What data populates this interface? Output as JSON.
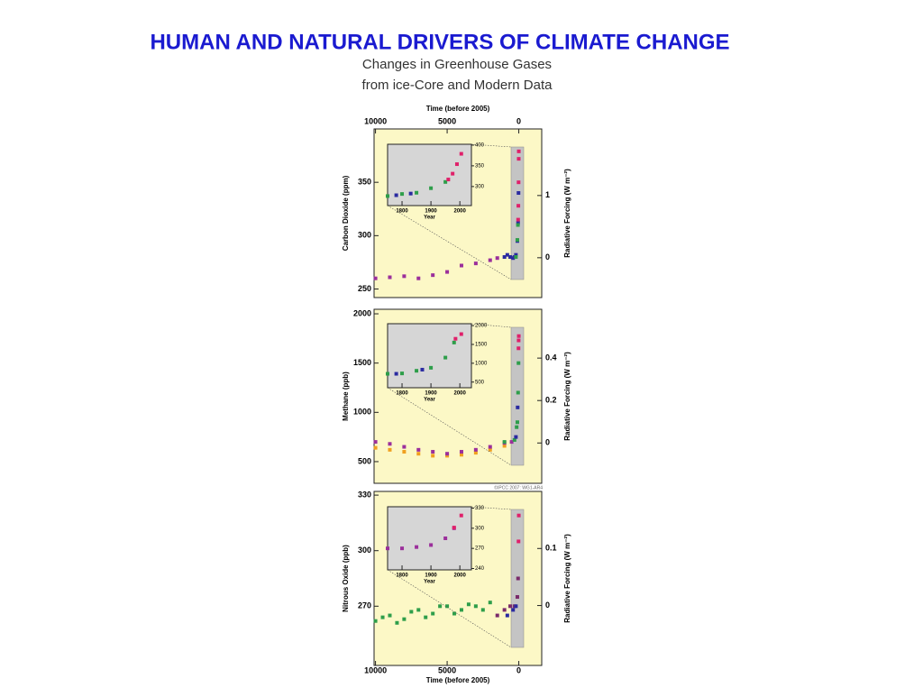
{
  "title": "HUMAN AND NATURAL DRIVERS OF CLIMATE CHANGE",
  "subtitle": [
    "Changes in Greenhouse Gases",
    "from ice-Core and Modern Data"
  ],
  "credit": "©IPCC 2007: WG1-AR4",
  "chart_data": [
    {
      "type": "scatter",
      "xlabel": "Time (before 2005)",
      "xlim": [
        10100,
        -1600
      ],
      "xticks": [
        10000,
        5000,
        0
      ],
      "xaxis": "top",
      "ylabel": "Carbon Dioxide (ppm)",
      "ylim": [
        242,
        400
      ],
      "yticks": [
        250,
        300,
        350
      ],
      "y2label": "Radiative Forcing (W m⁻²)",
      "y2lim": [
        -0.64,
        2.07
      ],
      "y2ticks": [
        0,
        1
      ],
      "series": [
        {
          "color": "#9b2f9b",
          "x": [
            10000,
            9000,
            8000,
            7000,
            6000,
            5000,
            4000,
            3000,
            2000,
            1500
          ],
          "y": [
            260,
            261,
            262,
            260,
            263,
            266,
            272,
            274,
            277,
            279
          ]
        },
        {
          "color": "#2a2aa0",
          "x": [
            1000,
            800,
            600,
            400,
            300,
            200,
            100,
            50,
            20
          ],
          "y": [
            280,
            282,
            280,
            279,
            280,
            282,
            295,
            312,
            340
          ]
        },
        {
          "color": "#2e9e4a",
          "x": [
            200,
            100,
            60
          ],
          "y": [
            280,
            296,
            310
          ]
        },
        {
          "color": "#e0206a",
          "x": [
            47,
            30,
            15,
            5,
            0
          ],
          "y": [
            315,
            328,
            350,
            372,
            379
          ]
        }
      ]
    },
    {
      "type": "scatter",
      "xlim": [
        10100,
        -1600
      ],
      "ylabel": "Methane (ppb)",
      "ylim": [
        280,
        2046
      ],
      "yticks": [
        500,
        1000,
        1500,
        2000
      ],
      "y2label": "Radiative Forcing (W m⁻²)",
      "y2lim": [
        -0.19,
        0.63
      ],
      "y2ticks": [
        0,
        0.2,
        0.4
      ],
      "series": [
        {
          "color": "#f0a020",
          "x": [
            10000,
            9000,
            8000,
            7000,
            6000,
            5000,
            4000,
            3000,
            2000,
            1000
          ],
          "y": [
            640,
            620,
            600,
            580,
            560,
            560,
            570,
            590,
            620,
            660
          ]
        },
        {
          "color": "#9b2f9b",
          "x": [
            10000,
            9000,
            8000,
            7000,
            6000,
            5000,
            4000,
            3000,
            2000,
            1000,
            500
          ],
          "y": [
            700,
            680,
            650,
            620,
            600,
            580,
            600,
            620,
            650,
            690,
            700
          ]
        },
        {
          "color": "#2e9e4a",
          "x": [
            1000,
            300,
            150,
            100,
            50,
            20
          ],
          "y": [
            700,
            720,
            850,
            900,
            1200,
            1500
          ]
        },
        {
          "color": "#2a2aa0",
          "x": [
            200,
            80
          ],
          "y": [
            750,
            1050
          ]
        },
        {
          "color": "#e0206a",
          "x": [
            20,
            10,
            0
          ],
          "y": [
            1650,
            1730,
            1774
          ]
        }
      ]
    },
    {
      "type": "scatter",
      "xlabel": "Time (before 2005)",
      "xlim": [
        10100,
        -1600
      ],
      "xticks": [
        10000,
        5000,
        0
      ],
      "xaxis": "bottom",
      "ylabel": "Nitrous Oxide (ppb)",
      "ylim": [
        238,
        332
      ],
      "yticks": [
        270,
        300,
        330
      ],
      "y2label": "Radiative Forcing (W m⁻²)",
      "y2lim": [
        -0.105,
        0.2
      ],
      "y2ticks": [
        0,
        0.1
      ],
      "series": [
        {
          "color": "#2e9e4a",
          "x": [
            10000,
            9500,
            9000,
            8500,
            8000,
            7500,
            7000,
            6500,
            6000,
            5500,
            5000,
            4500,
            4000,
            3500,
            3000,
            2500,
            2000
          ],
          "y": [
            262,
            264,
            265,
            261,
            263,
            267,
            268,
            264,
            266,
            270,
            270,
            266,
            268,
            271,
            270,
            268,
            272
          ]
        },
        {
          "color": "#7a2a6a",
          "x": [
            1500,
            1000,
            600,
            300,
            100,
            50
          ],
          "y": [
            265,
            268,
            270,
            270,
            275,
            285
          ]
        },
        {
          "color": "#2a2aa0",
          "x": [
            800,
            400,
            200
          ],
          "y": [
            265,
            268,
            270
          ]
        },
        {
          "color": "#e0206a",
          "x": [
            20,
            0
          ],
          "y": [
            305,
            319
          ]
        }
      ]
    },
    {
      "type": "scatter",
      "inset_of": 0,
      "xlabel": "Year",
      "xlim": [
        1750,
        2040
      ],
      "xticks": [
        1800,
        1900,
        2000
      ],
      "ylim": [
        254,
        402
      ],
      "yticks": [
        300,
        350,
        400
      ],
      "series": [
        {
          "color": "#2e9e4a",
          "x": [
            1750,
            1800,
            1850,
            1900,
            1950
          ],
          "y": [
            277,
            282,
            285,
            296,
            311
          ]
        },
        {
          "color": "#2a2aa0",
          "x": [
            1780,
            1830
          ],
          "y": [
            279,
            283
          ]
        },
        {
          "color": "#e0206a",
          "x": [
            1960,
            1975,
            1990,
            2005
          ],
          "y": [
            317,
            331,
            354,
            379
          ]
        }
      ]
    },
    {
      "type": "scatter",
      "inset_of": 1,
      "xlabel": "Year",
      "xlim": [
        1750,
        2040
      ],
      "xticks": [
        1800,
        1900,
        2000
      ],
      "ylim": [
        350,
        2050
      ],
      "yticks": [
        500,
        1000,
        1500,
        2000
      ],
      "series": [
        {
          "color": "#2e9e4a",
          "x": [
            1750,
            1800,
            1850,
            1900,
            1950,
            1980
          ],
          "y": [
            720,
            730,
            800,
            880,
            1150,
            1550
          ]
        },
        {
          "color": "#2a2aa0",
          "x": [
            1780,
            1870
          ],
          "y": [
            720,
            830
          ]
        },
        {
          "color": "#e0206a",
          "x": [
            1985,
            2005
          ],
          "y": [
            1650,
            1774
          ]
        }
      ]
    },
    {
      "type": "scatter",
      "inset_of": 2,
      "xlabel": "Year",
      "xlim": [
        1750,
        2040
      ],
      "xticks": [
        1800,
        1900,
        2000
      ],
      "ylim": [
        238,
        332
      ],
      "yticks": [
        240,
        270,
        300,
        330
      ],
      "series": [
        {
          "color": "#9b2f9b",
          "x": [
            1750,
            1800,
            1850,
            1900,
            1950,
            1980
          ],
          "y": [
            270,
            270,
            272,
            275,
            285,
            300
          ]
        },
        {
          "color": "#e0206a",
          "x": [
            1980,
            2005
          ],
          "y": [
            301,
            319
          ]
        }
      ]
    }
  ]
}
